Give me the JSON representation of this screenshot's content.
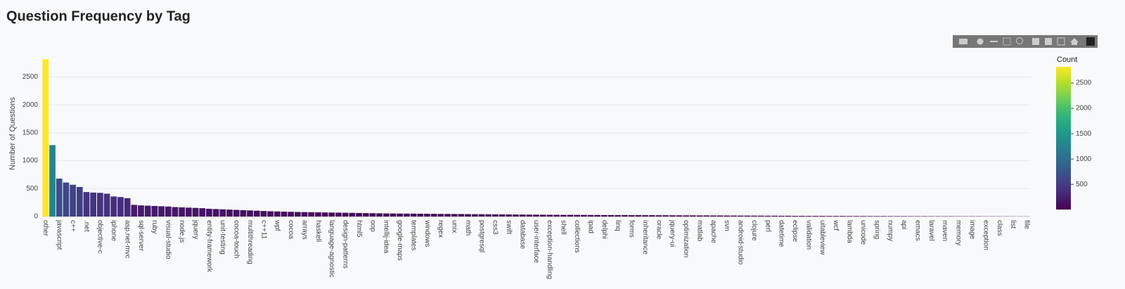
{
  "chart_data": {
    "type": "bar",
    "title": "Question Frequency by Tag",
    "y_label": "Number of Questions",
    "colorbar_title": "Count",
    "categories": [
      "other",
      null,
      "javascript",
      null,
      "c++",
      null,
      ".net",
      null,
      "objective-c",
      null,
      "iphone",
      null,
      "asp.net-mvc",
      null,
      "sql-server",
      null,
      "ruby",
      null,
      "visual-studio",
      null,
      "node.js",
      null,
      "jquery",
      null,
      "entity-framework",
      null,
      "unit-testing",
      null,
      "cocoa-touch",
      null,
      "multithreading",
      null,
      "c++11",
      null,
      "wpf",
      null,
      "cocoa",
      null,
      "arrays",
      null,
      "haskell",
      null,
      "language-agnostic",
      null,
      "design-patterns",
      null,
      "html5",
      null,
      "oop",
      null,
      "intellij-idea",
      null,
      "google-maps",
      null,
      "templates",
      null,
      "windows",
      null,
      "regex",
      null,
      "unix",
      null,
      "math",
      null,
      "postgresql",
      null,
      "css3",
      null,
      "swift",
      null,
      "database",
      null,
      "user-interface",
      null,
      "exception-handling",
      null,
      "shell",
      null,
      "collections",
      null,
      "ipad",
      null,
      "delphi",
      null,
      "linq",
      null,
      "forms",
      null,
      "inheritance",
      null,
      "oracle",
      null,
      "jquery-ui",
      null,
      "optimization",
      null,
      "matlab",
      null,
      "apache",
      null,
      "svn",
      null,
      "android-studio",
      null,
      "clojure",
      null,
      "perl",
      null,
      "datetime",
      null,
      "eclipse",
      null,
      "validation",
      null,
      "uitableview",
      null,
      "wcf",
      null,
      "lambda",
      null,
      "unicode",
      null,
      "spring",
      null,
      "numpy",
      null,
      "api",
      null,
      "emacs",
      null,
      "laravel",
      null,
      "maven",
      null,
      "memory",
      null,
      "image",
      null,
      "exception",
      null,
      "class",
      null,
      "list",
      null,
      "file"
    ],
    "values": [
      2820,
      1280,
      680,
      610,
      570,
      530,
      440,
      430,
      425,
      410,
      360,
      350,
      330,
      210,
      200,
      195,
      190,
      185,
      180,
      170,
      165,
      160,
      155,
      150,
      140,
      135,
      130,
      125,
      120,
      115,
      110,
      105,
      100,
      95,
      92,
      88,
      85,
      82,
      80,
      78,
      76,
      74,
      72,
      70,
      68,
      66,
      64,
      62,
      60,
      58,
      56,
      55,
      54,
      53,
      52,
      51,
      50,
      49,
      48,
      47,
      46,
      45,
      44,
      43,
      42,
      41,
      40,
      39,
      38,
      37,
      36,
      35,
      34,
      33,
      32,
      31,
      30,
      30,
      29,
      29,
      28,
      28,
      27,
      27,
      26,
      26,
      25,
      25,
      24,
      24,
      23,
      23,
      22,
      22,
      21,
      21,
      20,
      20,
      19,
      19,
      18,
      18,
      17,
      17,
      16,
      16,
      15,
      15,
      14,
      14,
      13,
      13,
      12,
      12,
      12,
      11,
      11,
      11,
      10,
      10,
      10,
      9,
      9,
      9,
      8,
      8,
      8,
      7,
      7,
      7,
      6,
      6,
      6,
      6,
      5,
      5,
      5,
      5,
      4,
      4,
      4,
      4,
      3,
      3,
      3
    ],
    "ylim": [
      0,
      2960
    ],
    "yticks": [
      0,
      500,
      1000,
      1500,
      2000,
      2500
    ],
    "grid": true,
    "colorscale": [
      "#440154",
      "#482878",
      "#3e4989",
      "#31688e",
      "#26828e",
      "#1f9e89",
      "#35b779",
      "#6ece58",
      "#b5de2b",
      "#fde725"
    ],
    "clim": [
      3,
      2820
    ],
    "cticks": [
      500,
      1000,
      1500,
      2000,
      2500
    ]
  }
}
